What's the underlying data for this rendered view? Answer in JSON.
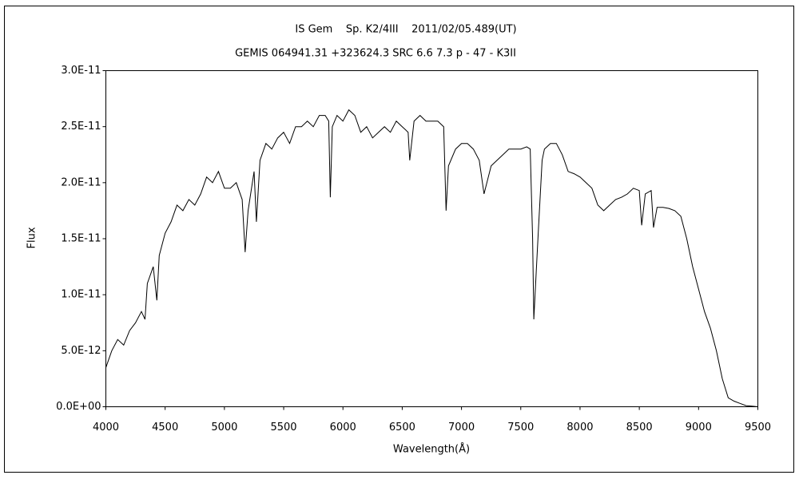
{
  "chart_data": {
    "type": "line",
    "title": "IS Gem    Sp. K2/4III    2011/02/05.489(UT)",
    "subtitle": "GEMIS 064941.31 +323624.3 SRC 6.6 7.3 p - 47 - K3II",
    "x_label": "Wavelength(Å)",
    "y_label": "Flux",
    "xlim": [
      4000,
      9500
    ],
    "xticks": [
      4000,
      4500,
      5000,
      5500,
      6000,
      6500,
      7000,
      7500,
      8000,
      8500,
      9000,
      9500
    ],
    "ylim": [
      0,
      3e-11
    ],
    "yticks": [
      {
        "value": 0,
        "label": "0.0E+00"
      },
      {
        "value": 5e-12,
        "label": "5.0E-12"
      },
      {
        "value": 1e-11,
        "label": "1.0E-11"
      },
      {
        "value": 1.5e-11,
        "label": "1.5E-11"
      },
      {
        "value": 2e-11,
        "label": "2.0E-11"
      },
      {
        "value": 2.5e-11,
        "label": "2.5E-11"
      },
      {
        "value": 3e-11,
        "label": "3.0E-11"
      }
    ],
    "grid": false,
    "color": "#000000",
    "x": [
      4000,
      4050,
      4100,
      4150,
      4200,
      4250,
      4300,
      4330,
      4350,
      4400,
      4430,
      4450,
      4500,
      4550,
      4600,
      4650,
      4700,
      4750,
      4800,
      4850,
      4900,
      4950,
      5000,
      5050,
      5100,
      5150,
      5175,
      5200,
      5250,
      5270,
      5300,
      5350,
      5400,
      5450,
      5500,
      5550,
      5600,
      5650,
      5700,
      5750,
      5800,
      5850,
      5880,
      5893,
      5910,
      5950,
      6000,
      6050,
      6100,
      6150,
      6200,
      6250,
      6300,
      6350,
      6400,
      6450,
      6500,
      6550,
      6563,
      6600,
      6650,
      6700,
      6750,
      6800,
      6850,
      6870,
      6890,
      6950,
      7000,
      7050,
      7100,
      7150,
      7190,
      7250,
      7300,
      7350,
      7400,
      7450,
      7500,
      7550,
      7580,
      7600,
      7610,
      7630,
      7650,
      7680,
      7700,
      7750,
      7800,
      7850,
      7900,
      7950,
      8000,
      8050,
      8100,
      8150,
      8200,
      8250,
      8300,
      8350,
      8400,
      8450,
      8500,
      8520,
      8550,
      8600,
      8620,
      8650,
      8700,
      8750,
      8800,
      8850,
      8900,
      8950,
      9000,
      9050,
      9100,
      9150,
      9200,
      9250,
      9300,
      9350,
      9400,
      9450,
      9500
    ],
    "values": [
      3.5e-12,
      5e-12,
      6e-12,
      5.5e-12,
      6.8e-12,
      7.5e-12,
      8.5e-12,
      7.8e-12,
      1.1e-11,
      1.25e-11,
      9.5e-12,
      1.35e-11,
      1.55e-11,
      1.65e-11,
      1.8e-11,
      1.75e-11,
      1.85e-11,
      1.8e-11,
      1.9e-11,
      2.05e-11,
      2e-11,
      2.1e-11,
      1.95e-11,
      1.95e-11,
      2e-11,
      1.85e-11,
      1.38e-11,
      1.75e-11,
      2.1e-11,
      1.65e-11,
      2.2e-11,
      2.35e-11,
      2.3e-11,
      2.4e-11,
      2.45e-11,
      2.35e-11,
      2.5e-11,
      2.5e-11,
      2.55e-11,
      2.5e-11,
      2.6e-11,
      2.6e-11,
      2.55e-11,
      1.87e-11,
      2.5e-11,
      2.6e-11,
      2.55e-11,
      2.65e-11,
      2.6e-11,
      2.45e-11,
      2.5e-11,
      2.4e-11,
      2.45e-11,
      2.5e-11,
      2.45e-11,
      2.55e-11,
      2.5e-11,
      2.45e-11,
      2.2e-11,
      2.55e-11,
      2.6e-11,
      2.55e-11,
      2.55e-11,
      2.55e-11,
      2.5e-11,
      1.75e-11,
      2.15e-11,
      2.3e-11,
      2.35e-11,
      2.35e-11,
      2.3e-11,
      2.2e-11,
      1.9e-11,
      2.15e-11,
      2.2e-11,
      2.25e-11,
      2.3e-11,
      2.3e-11,
      2.3e-11,
      2.32e-11,
      2.3e-11,
      1.5e-11,
      7.8e-12,
      1.2e-11,
      1.6e-11,
      2.2e-11,
      2.3e-11,
      2.35e-11,
      2.35e-11,
      2.25e-11,
      2.1e-11,
      2.08e-11,
      2.05e-11,
      2e-11,
      1.95e-11,
      1.8e-11,
      1.75e-11,
      1.8e-11,
      1.85e-11,
      1.87e-11,
      1.9e-11,
      1.95e-11,
      1.93e-11,
      1.62e-11,
      1.9e-11,
      1.93e-11,
      1.6e-11,
      1.78e-11,
      1.78e-11,
      1.77e-11,
      1.75e-11,
      1.7e-11,
      1.5e-11,
      1.25e-11,
      1.05e-11,
      8.5e-12,
      7e-12,
      5e-12,
      2.5e-12,
      8e-13,
      5e-13,
      3e-13,
      1e-13,
      5e-14,
      0
    ]
  }
}
